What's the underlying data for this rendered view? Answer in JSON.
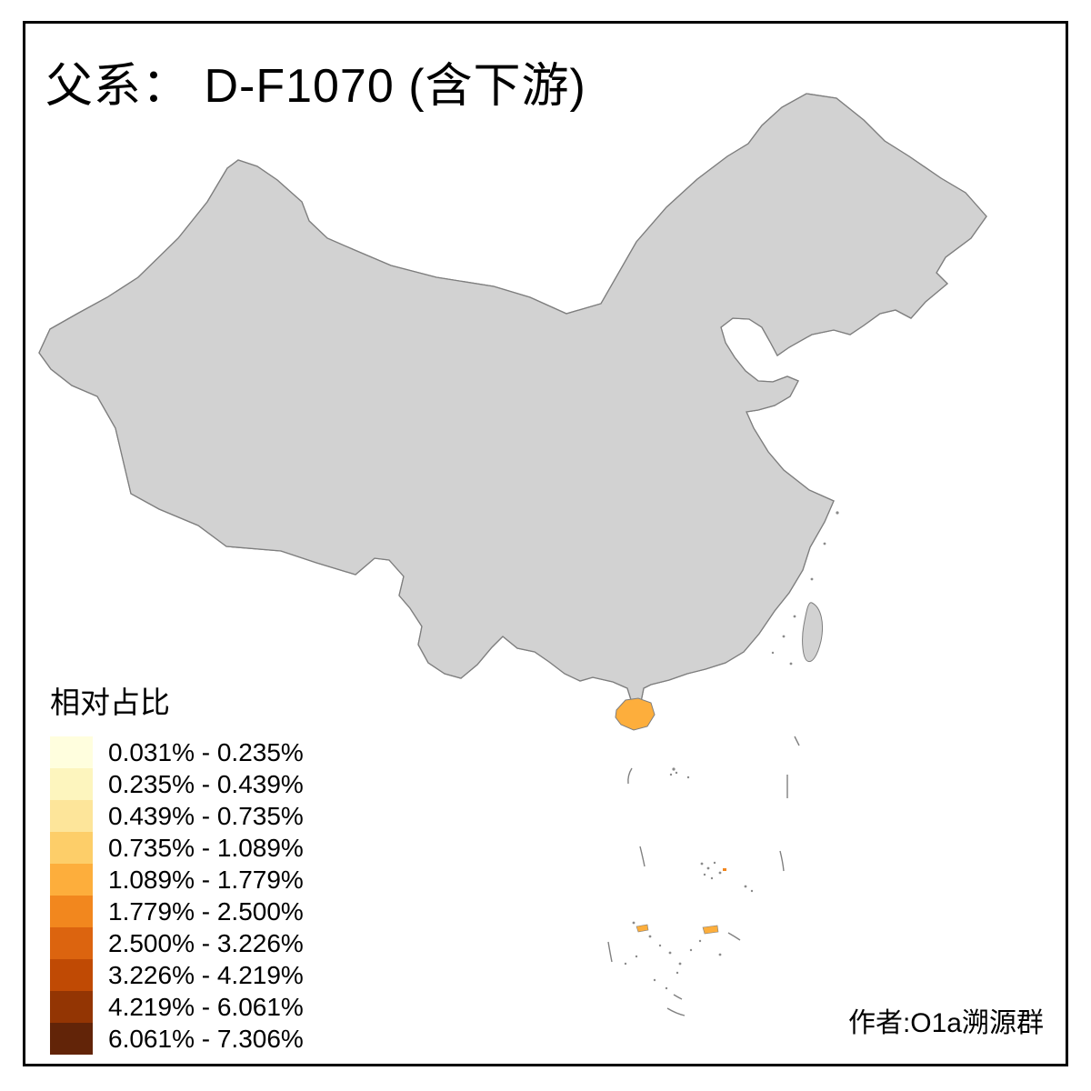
{
  "title": "父系： D-F1070 (含下游)",
  "attribution": "作者:O1a溯源群",
  "legend": {
    "title": "相对占比",
    "classes": [
      {
        "label": "0.031% - 0.235%",
        "color": "#FFFEDE"
      },
      {
        "label": "0.235% - 0.439%",
        "color": "#FDF5BE"
      },
      {
        "label": "0.439% - 0.735%",
        "color": "#FDE59A"
      },
      {
        "label": "0.735% - 1.089%",
        "color": "#FDCE69"
      },
      {
        "label": "1.089% - 1.779%",
        "color": "#FDAE3C"
      },
      {
        "label": "1.779% - 2.500%",
        "color": "#F2871E"
      },
      {
        "label": "2.500% - 3.226%",
        "color": "#DC640F"
      },
      {
        "label": "3.226% - 4.219%",
        "color": "#C04A04"
      },
      {
        "label": "4.219% - 6.061%",
        "color": "#933503"
      },
      {
        "label": "6.061% - 7.306%",
        "color": "#622408"
      }
    ]
  },
  "map": {
    "no_data_color": "#D2D2D2",
    "boundary_color": "#7E7E7E",
    "region_edge_color": "#909090",
    "background": "#FFFFFF",
    "regions_format": "[class(1-10), cx, cy, rx, ry]",
    "regions": [
      [
        6,
        372,
        303,
        40,
        44
      ],
      [
        3,
        420,
        357,
        55,
        42
      ],
      [
        7,
        492,
        446,
        36,
        26
      ],
      [
        6,
        529,
        479,
        20,
        24
      ],
      [
        6,
        578,
        470,
        26,
        25
      ],
      [
        4,
        603,
        465,
        18,
        13
      ],
      [
        6,
        645,
        506,
        24,
        20
      ],
      [
        2,
        657,
        444,
        16,
        18
      ],
      [
        1,
        688,
        424,
        26,
        38
      ],
      [
        2,
        678,
        492,
        18,
        12
      ],
      [
        1,
        962,
        242,
        36,
        19
      ],
      [
        2,
        1030,
        262,
        40,
        25
      ],
      [
        2,
        920,
        266,
        20,
        16
      ],
      [
        5,
        948,
        322,
        16,
        20
      ],
      [
        1,
        925,
        335,
        22,
        14
      ],
      [
        2,
        898,
        347,
        18,
        10
      ],
      [
        3,
        822,
        362,
        7,
        8
      ],
      [
        1,
        1000,
        295,
        20,
        14
      ],
      [
        1,
        770,
        388,
        44,
        42
      ],
      [
        2,
        780,
        410,
        11,
        9
      ],
      [
        1,
        728,
        432,
        24,
        42
      ],
      [
        1,
        745,
        478,
        44,
        33
      ],
      [
        2,
        764,
        500,
        14,
        10
      ],
      [
        1,
        832,
        440,
        38,
        21
      ],
      [
        2,
        824,
        470,
        24,
        14
      ],
      [
        3,
        815,
        486,
        9,
        8
      ],
      [
        2,
        845,
        507,
        24,
        16
      ],
      [
        1,
        848,
        537,
        33,
        24
      ],
      [
        2,
        742,
        521,
        28,
        16
      ],
      [
        4,
        734,
        541,
        20,
        13
      ],
      [
        3,
        701,
        546,
        16,
        11
      ],
      [
        4,
        610,
        541,
        26,
        18
      ],
      [
        5,
        607,
        572,
        22,
        16
      ],
      [
        6,
        631,
        599,
        20,
        14
      ],
      [
        6,
        664,
        611,
        17,
        14
      ],
      [
        5,
        676,
        558,
        15,
        17
      ],
      [
        4,
        701,
        561,
        13,
        12
      ],
      [
        3,
        652,
        576,
        13,
        10
      ],
      [
        9,
        703,
        599,
        15,
        22
      ],
      [
        7,
        676,
        616,
        11,
        11
      ],
      [
        8,
        688,
        627,
        18,
        16
      ],
      [
        9,
        660,
        651,
        24,
        19
      ],
      [
        10,
        710,
        663,
        16,
        13
      ],
      [
        7,
        733,
        649,
        11,
        16
      ],
      [
        8,
        661,
        692,
        17,
        14
      ],
      [
        10,
        719,
        703,
        12,
        15
      ],
      [
        8,
        700,
        721,
        16,
        12
      ],
      [
        7,
        690,
        701,
        11,
        9
      ],
      [
        5,
        537,
        661,
        26,
        24
      ],
      [
        6,
        584,
        696,
        24,
        27
      ],
      [
        2,
        506,
        691,
        14,
        17
      ],
      [
        3,
        531,
        716,
        14,
        11
      ],
      [
        4,
        571,
        631,
        14,
        14
      ],
      [
        6,
        660,
        723,
        21,
        12
      ],
      [
        7,
        668,
        716,
        12,
        9
      ],
      [
        6,
        746,
        701,
        21,
        17
      ],
      [
        5,
        763,
        726,
        17,
        11
      ],
      [
        4,
        776,
        706,
        14,
        11
      ],
      [
        5,
        801,
        701,
        17,
        13
      ],
      [
        3,
        704,
        753,
        9,
        13
      ],
      [
        2,
        652,
        736,
        11,
        7
      ],
      [
        6,
        743,
        641,
        19,
        24
      ],
      [
        4,
        766,
        661,
        17,
        17
      ],
      [
        3,
        791,
        651,
        14,
        19
      ],
      [
        1,
        822,
        641,
        24,
        29
      ],
      [
        2,
        801,
        691,
        14,
        11
      ],
      [
        7,
        833,
        586,
        7,
        11
      ],
      [
        6,
        834,
        607,
        13,
        9
      ],
      [
        1,
        871,
        591,
        24,
        19
      ],
      [
        3,
        866,
        626,
        14,
        11
      ],
      [
        4,
        856,
        651,
        14,
        14
      ],
      [
        3,
        831,
        691,
        14,
        14
      ],
      [
        2,
        899,
        556,
        11,
        7
      ]
    ]
  }
}
